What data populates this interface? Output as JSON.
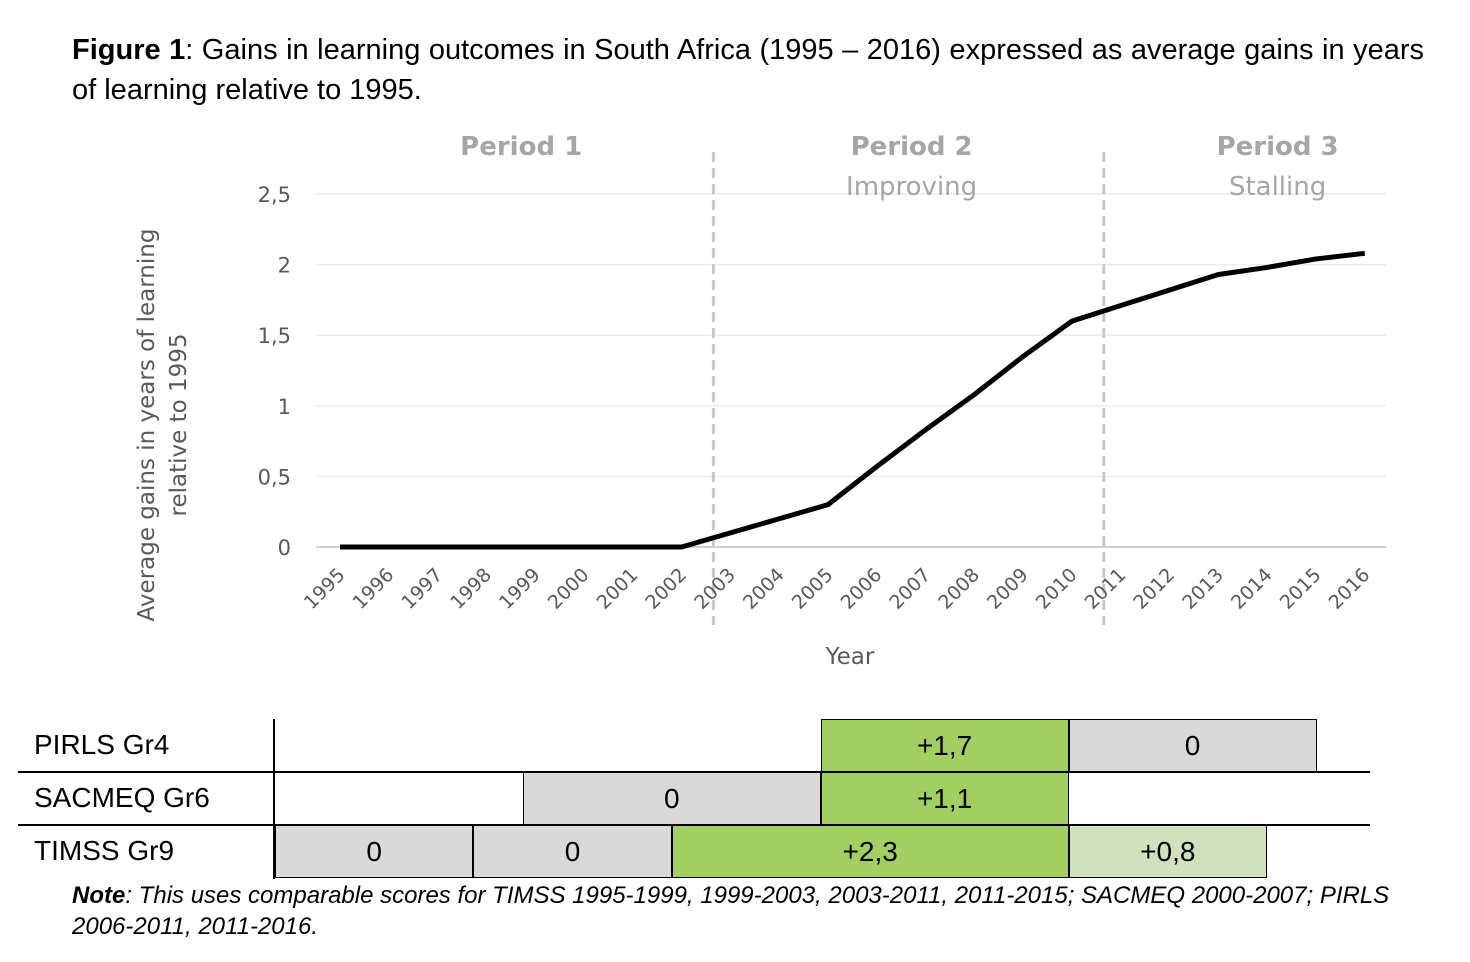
{
  "caption": {
    "label": "Figure 1",
    "text": ": Gains in learning outcomes in South Africa (1995 – 2016) expressed as average gains in years of learning relative to 1995."
  },
  "chart_data": {
    "type": "line",
    "title": "",
    "xlabel": "Year",
    "ylabel": "Average gains in years of learning relative to 1995",
    "categories": [
      "1995",
      "1996",
      "1997",
      "1998",
      "1999",
      "2000",
      "2001",
      "2002",
      "2003",
      "2004",
      "2005",
      "2006",
      "2007",
      "2008",
      "2009",
      "2010",
      "2011",
      "2012",
      "2013",
      "2014",
      "2015",
      "2016"
    ],
    "series": [
      {
        "name": "Average gains",
        "color": "#000000",
        "values": [
          0,
          0,
          0,
          0,
          0,
          0,
          0,
          0,
          0.1,
          0.2,
          0.3,
          0.57,
          0.83,
          1.08,
          1.35,
          1.6,
          1.71,
          1.82,
          1.93,
          1.98,
          2.04,
          2.08
        ]
      }
    ],
    "yticks": [
      "0",
      "0,5",
      "1",
      "1,5",
      "2",
      "2,5"
    ],
    "ytick_values": [
      0,
      0.5,
      1,
      1.5,
      2,
      2.5
    ],
    "ylim": [
      0,
      2.5
    ],
    "grid": true,
    "period_dividers": [
      "2003",
      "2011"
    ],
    "periods": [
      {
        "title": "Period 1",
        "subtitle": "",
        "year": "1999"
      },
      {
        "title": "Period 2",
        "subtitle": "Improving",
        "year": "2007"
      },
      {
        "title": "Period 3",
        "subtitle": "Stalling",
        "year": "2014.5"
      }
    ]
  },
  "gains_table": {
    "rows": [
      {
        "label": "PIRLS Gr4",
        "cells": [
          {
            "value": "+1,7",
            "from": "2006",
            "to": "2011",
            "color": "#a3cf62"
          },
          {
            "value": "0",
            "from": "2011",
            "to": "2016",
            "color": "#d9d9d9"
          }
        ]
      },
      {
        "label": "SACMEQ Gr6",
        "cells": [
          {
            "value": "0",
            "from": "2000",
            "to": "2006",
            "color": "#d9d9d9"
          },
          {
            "value": "+1,1",
            "from": "2006",
            "to": "2011",
            "color": "#a3cf62"
          }
        ]
      },
      {
        "label": "TIMSS Gr9",
        "cells": [
          {
            "value": "0",
            "from": "1995",
            "to": "1999",
            "color": "#d9d9d9"
          },
          {
            "value": "0",
            "from": "1999",
            "to": "2003",
            "color": "#d9d9d9"
          },
          {
            "value": "+2,3",
            "from": "2003",
            "to": "2011",
            "color": "#a3cf62"
          },
          {
            "value": "+0,8",
            "from": "2011",
            "to": "2015",
            "color": "#d0e2bd"
          }
        ]
      }
    ]
  },
  "note": {
    "label": "Note",
    "text": ": This uses comparable scores for TIMSS 1995-1999, 1999-2003, 2003-2011, 2011-2015; SACMEQ 2000-2007; PIRLS 2006-2011, 2011-2016."
  }
}
